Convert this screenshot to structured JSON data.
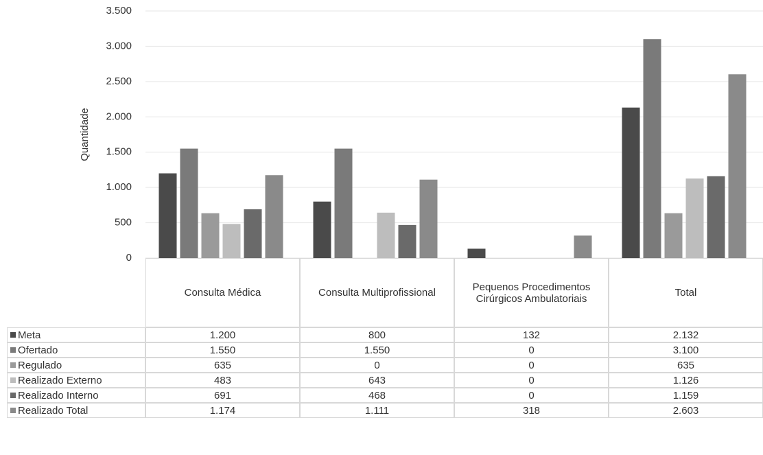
{
  "chart_data": {
    "type": "bar",
    "y_label": "Quantidade",
    "categories": [
      "Consulta Médica",
      "Consulta Multiprofissional",
      "Pequenos Procedimentos Cirúrgicos Ambulatoriais",
      "Total"
    ],
    "series": [
      {
        "name": "Meta",
        "color": "#4a4a4a",
        "values": [
          1200,
          800,
          132,
          2132
        ],
        "value_labels": [
          "1.200",
          "800",
          "132",
          "2.132"
        ]
      },
      {
        "name": "Ofertado",
        "color": "#7a7a7a",
        "values": [
          1550,
          1550,
          0,
          3100
        ],
        "value_labels": [
          "1.550",
          "1.550",
          "0",
          "3.100"
        ]
      },
      {
        "name": "Regulado",
        "color": "#9a9a9a",
        "values": [
          635,
          0,
          0,
          635
        ],
        "value_labels": [
          "635",
          "0",
          "0",
          "635"
        ]
      },
      {
        "name": "Realizado Externo",
        "color": "#bdbdbd",
        "values": [
          483,
          643,
          0,
          1126
        ],
        "value_labels": [
          "483",
          "643",
          "0",
          "1.126"
        ]
      },
      {
        "name": "Realizado Interno",
        "color": "#6a6a6a",
        "values": [
          691,
          468,
          0,
          1159
        ],
        "value_labels": [
          "691",
          "468",
          "0",
          "1.159"
        ]
      },
      {
        "name": "Realizado Total",
        "color": "#8a8a8a",
        "values": [
          1174,
          1111,
          318,
          2603
        ],
        "value_labels": [
          "1.174",
          "1.111",
          "318",
          "2.603"
        ]
      }
    ],
    "ylim": [
      0,
      3500
    ],
    "yticks": [
      0,
      500,
      {
        "value": 1000,
        "label": "1.000"
      },
      {
        "value": 1500,
        "label": "1.500"
      },
      {
        "value": 2000,
        "label": "2.000"
      },
      {
        "value": 2500,
        "label": "2.500"
      },
      {
        "value": 3000,
        "label": "3.000"
      },
      {
        "value": 3500,
        "label": "3.500"
      }
    ],
    "grid": true
  }
}
